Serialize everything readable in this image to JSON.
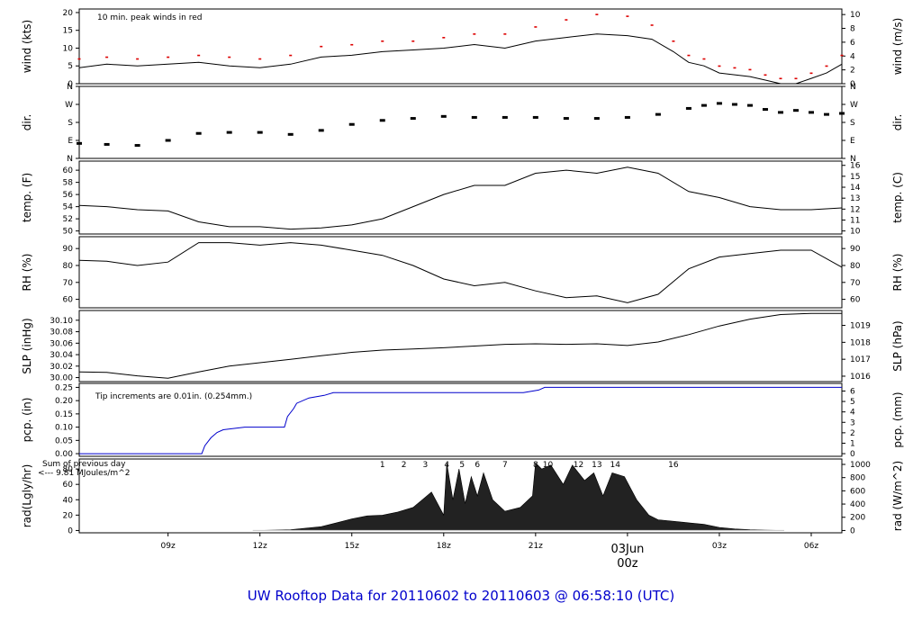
{
  "title": "UW Rooftop Data for 20110602  to  20110603 @ 06:58:10  (UTC)",
  "colors": {
    "frame": "#000000",
    "red": "#dd0000",
    "blue": "#0000cc",
    "purple": "#9900cc",
    "grey": "#cccccc"
  },
  "x_axis": {
    "start_hour_z": 6.1,
    "end_hour_z": 31.0,
    "ticks": [
      {
        "label": "09z",
        "hour": 9
      },
      {
        "label": "12z",
        "hour": 12
      },
      {
        "label": "15z",
        "hour": 15
      },
      {
        "label": "18z",
        "hour": 18
      },
      {
        "label": "21z",
        "hour": 21
      },
      {
        "label": "00z",
        "hour": 24,
        "date_label": "03Jun"
      },
      {
        "label": "03z",
        "hour": 27
      },
      {
        "label": "06z",
        "hour": 30
      }
    ]
  },
  "chart_data": [
    {
      "id": "wind",
      "type": "line",
      "ylabel_left": "wind (kts)",
      "ylabel_right": "wind (m/s)",
      "ylim": [
        0,
        21
      ],
      "yticks_left": [
        0,
        5,
        10,
        15,
        20
      ],
      "yticks_right": [
        0,
        2,
        4,
        6,
        8,
        10
      ],
      "right_scale": 0.5144,
      "annotation": "10 min. peak winds in red",
      "series": [
        {
          "role": "mean",
          "x": [
            6.1,
            7,
            8,
            9,
            10,
            11,
            12,
            13,
            14,
            15,
            16,
            17,
            18,
            19,
            20,
            21,
            22,
            23,
            24,
            24.8,
            25.5,
            26,
            26.5,
            27,
            27.5,
            28,
            28.5,
            29,
            29.5,
            30,
            30.5,
            31
          ],
          "y": [
            4.5,
            5.5,
            5,
            5.5,
            6,
            5,
            4.5,
            5.5,
            7.5,
            8,
            9,
            9.5,
            10,
            11,
            10,
            12,
            13,
            14,
            13.5,
            12.5,
            9,
            6,
            5,
            3,
            2.5,
            2,
            1,
            0,
            0,
            1.5,
            3,
            5.5
          ]
        },
        {
          "role": "peak",
          "x": [
            6.1,
            7,
            8,
            9,
            10,
            11,
            12,
            13,
            14,
            15,
            16,
            17,
            18,
            19,
            20,
            21,
            22,
            23,
            24,
            24.8,
            25.5,
            26,
            26.5,
            27,
            27.5,
            28,
            28.5,
            29,
            29.5,
            30,
            30.5,
            31
          ],
          "y": [
            7,
            7.5,
            7,
            7.5,
            8,
            7.5,
            7,
            8,
            10.5,
            11,
            12,
            12,
            13,
            14,
            14,
            16,
            18,
            19.5,
            19,
            16.5,
            12,
            8,
            7,
            5,
            4.5,
            4,
            2.5,
            1.5,
            1.5,
            3,
            5,
            8
          ]
        }
      ]
    },
    {
      "id": "dir",
      "type": "scatter",
      "ylabel_left": "dir.",
      "ylabel_right": "dir.",
      "ylim": [
        0,
        360
      ],
      "tick_labels": [
        "N",
        "E",
        "S",
        "W",
        "N"
      ],
      "tick_values": [
        0,
        90,
        180,
        270,
        360
      ],
      "series": [
        {
          "x": [
            6.1,
            7,
            8,
            9,
            10,
            11,
            12,
            13,
            14,
            15,
            16,
            17,
            18,
            19,
            20,
            21,
            22,
            23,
            24,
            25,
            26,
            26.5,
            27,
            27.5,
            28,
            28.5,
            29,
            29.5,
            30,
            30.5,
            31
          ],
          "y": [
            75,
            70,
            65,
            90,
            125,
            130,
            130,
            120,
            140,
            170,
            190,
            200,
            210,
            205,
            205,
            205,
            200,
            200,
            205,
            220,
            250,
            265,
            275,
            270,
            265,
            245,
            230,
            240,
            230,
            220,
            225
          ]
        }
      ]
    },
    {
      "id": "temp",
      "type": "line",
      "ylabel_left": "temp. (F)",
      "ylabel_right": "temp. (C)",
      "ylim": [
        49.5,
        61.5
      ],
      "yticks_left": [
        50,
        52,
        54,
        56,
        58,
        60
      ],
      "yticks_right": [
        10,
        11,
        12,
        13,
        14,
        15,
        16
      ],
      "series": [
        {
          "x": [
            6.1,
            7,
            8,
            9,
            10,
            11,
            12,
            13,
            14,
            15,
            16,
            17,
            18,
            19,
            20,
            21,
            22,
            23,
            24,
            25,
            26,
            27,
            28,
            29,
            30,
            31
          ],
          "y": [
            54.2,
            54,
            53.5,
            53.3,
            51.5,
            50.7,
            50.7,
            50.3,
            50.5,
            51,
            52,
            54,
            56,
            57.5,
            57.5,
            59.5,
            60,
            59.5,
            60.5,
            59.5,
            56.5,
            55.5,
            54,
            53.5,
            53.5,
            53.8
          ]
        }
      ]
    },
    {
      "id": "rh",
      "type": "line",
      "ylabel_left": "RH (%)",
      "ylabel_right": "RH (%)",
      "ylim": [
        55,
        97
      ],
      "yticks_left": [
        60,
        70,
        80,
        90
      ],
      "yticks_right": [
        60,
        70,
        80,
        90
      ],
      "series": [
        {
          "x": [
            6.1,
            7,
            8,
            9,
            10,
            11,
            12,
            13,
            14,
            15,
            16,
            17,
            18,
            19,
            20,
            21,
            22,
            23,
            24,
            25,
            26,
            27,
            28,
            29,
            30,
            31
          ],
          "y": [
            83,
            82.5,
            80,
            82,
            93.5,
            93.5,
            92,
            93.5,
            92,
            89,
            86,
            80,
            72,
            68,
            70,
            65,
            61,
            62,
            58,
            63,
            78,
            85,
            87,
            89,
            89,
            79
          ]
        }
      ]
    },
    {
      "id": "slp",
      "type": "line",
      "ylabel_left": "SLP (inHg)",
      "ylabel_right": "SLP (hPa)",
      "ylim": [
        29.993,
        30.117
      ],
      "yticks_left": [
        30.0,
        30.02,
        30.04,
        30.06,
        30.08,
        30.1
      ],
      "tick_labels_left": [
        "30.00",
        "30.02",
        "30.04",
        "30.06",
        "30.08",
        "30.10"
      ],
      "yticks_right_hpa": [
        1016,
        1017,
        1018,
        1019
      ],
      "series": [
        {
          "x": [
            6.1,
            7,
            8,
            9,
            10,
            11,
            12,
            13,
            14,
            15,
            16,
            17,
            18,
            19,
            20,
            21,
            22,
            23,
            24,
            25,
            26,
            27,
            28,
            29,
            30,
            31
          ],
          "y": [
            30.01,
            30.009,
            30.003,
            29.999,
            30.01,
            30.02,
            30.026,
            30.032,
            30.038,
            30.044,
            30.048,
            30.05,
            30.052,
            30.055,
            30.058,
            30.059,
            30.058,
            30.059,
            30.056,
            30.062,
            30.075,
            30.09,
            30.102,
            30.11,
            30.112,
            30.112
          ]
        }
      ]
    },
    {
      "id": "pcp",
      "type": "line",
      "ylabel_left": "pcp. (in)",
      "ylabel_right": "pcp. (mm)",
      "ylim": [
        -0.01,
        0.265
      ],
      "yticks_left": [
        0.0,
        0.05,
        0.1,
        0.15,
        0.2,
        0.25
      ],
      "tick_labels_left": [
        "0.00",
        "0.05",
        "0.10",
        "0.15",
        "0.20",
        "0.25"
      ],
      "yticks_right": [
        0,
        1,
        2,
        3,
        4,
        5,
        6
      ],
      "annotation": "Tip increments are 0.01in. (0.254mm.)",
      "series": [
        {
          "x": [
            6.1,
            10.1,
            10.2,
            10.4,
            10.6,
            10.8,
            11.5,
            12.8,
            12.9,
            13.1,
            13.2,
            13.6,
            14.1,
            14.4,
            20.6,
            21.1,
            21.3,
            31
          ],
          "y": [
            0,
            0,
            0.03,
            0.06,
            0.08,
            0.09,
            0.1,
            0.1,
            0.14,
            0.17,
            0.19,
            0.21,
            0.22,
            0.23,
            0.23,
            0.24,
            0.25,
            0.25
          ]
        }
      ]
    },
    {
      "id": "rad",
      "type": "area",
      "ylabel_left": "rad(Lgly/hr)",
      "ylabel_right": "rad (W/m^2)",
      "ylim": [
        -3,
        93
      ],
      "yticks_left": [
        0,
        20,
        40,
        60,
        80
      ],
      "yticks_right": [
        0,
        200,
        400,
        600,
        800,
        1000
      ],
      "right_scale": 11.63,
      "annotation_lines": [
        "Sum of previous day",
        "<--- 9.81 MJoules/m^2"
      ],
      "hour_markers": [
        {
          "label": "1",
          "hour": 16.0
        },
        {
          "label": "2",
          "hour": 16.7
        },
        {
          "label": "3",
          "hour": 17.4
        },
        {
          "label": "4",
          "hour": 18.1
        },
        {
          "label": "5",
          "hour": 18.6
        },
        {
          "label": "6",
          "hour": 19.1
        },
        {
          "label": "7",
          "hour": 20.0
        },
        {
          "label": "8",
          "hour": 21.0
        },
        {
          "label": "10",
          "hour": 21.4
        },
        {
          "label": "12",
          "hour": 22.4
        },
        {
          "label": "13",
          "hour": 23.0
        },
        {
          "label": "14",
          "hour": 23.6
        },
        {
          "label": "16",
          "hour": 25.5
        }
      ],
      "series": [
        {
          "x": [
            12,
            13,
            14,
            14.5,
            15,
            15.5,
            16,
            16.5,
            17,
            17.3,
            17.6,
            18,
            18.1,
            18.3,
            18.5,
            18.7,
            18.9,
            19.1,
            19.3,
            19.6,
            20,
            20.5,
            20.9,
            21.0,
            21.2,
            21.5,
            21.9,
            22.2,
            22.6,
            22.9,
            23.2,
            23.5,
            23.9,
            24.3,
            24.7,
            25,
            25.5,
            26,
            26.5,
            27,
            27.5,
            28,
            28.5,
            29
          ],
          "y": [
            0,
            1,
            5,
            10,
            15,
            19,
            20,
            24,
            30,
            40,
            50,
            20,
            88,
            40,
            80,
            35,
            70,
            45,
            75,
            40,
            25,
            30,
            45,
            88,
            80,
            85,
            60,
            85,
            65,
            75,
            45,
            75,
            70,
            40,
            20,
            14,
            12,
            10,
            8,
            4,
            2,
            1,
            0.5,
            0
          ]
        }
      ]
    }
  ]
}
